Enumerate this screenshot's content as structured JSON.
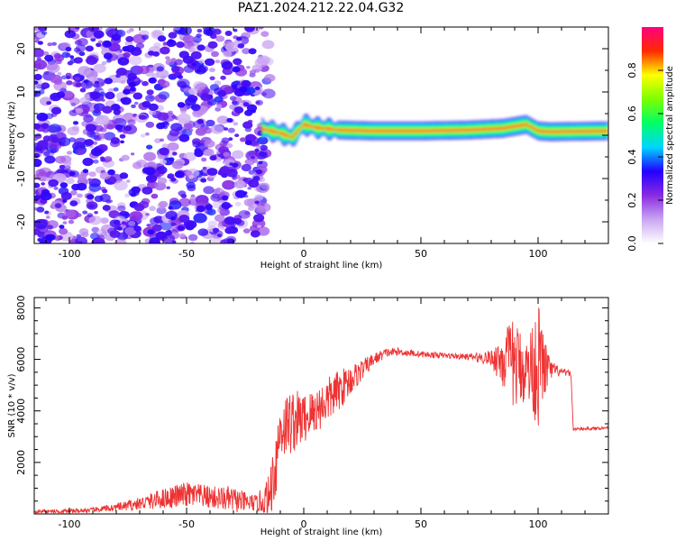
{
  "title": "PAZ1.2024.212.22.04.G32",
  "chart_data": [
    {
      "type": "heatmap",
      "xlabel": "Height of straight line (km)",
      "ylabel": "Frequency (Hz)",
      "xlim": [
        -115,
        130
      ],
      "ylim": [
        -25,
        25
      ],
      "x_ticks": [
        -100,
        -50,
        0,
        50,
        100
      ],
      "x_tick_labels": [
        "-100",
        "-50",
        "0",
        "50",
        "100"
      ],
      "y_ticks": [
        -20,
        -10,
        0,
        10,
        20
      ],
      "y_tick_labels": [
        "-20",
        "-10",
        "0",
        "10",
        "20"
      ],
      "colorbar": {
        "label": "Normalized spectral amplitude",
        "range": [
          0,
          1
        ],
        "ticks": [
          0.0,
          0.2,
          0.4,
          0.6,
          0.8
        ],
        "tick_labels": [
          "0.0",
          "0.2",
          "0.4",
          "0.6",
          "0.8"
        ],
        "colors": [
          "#ffffff",
          "#c9a6f2",
          "#8a2be2",
          "#2200ff",
          "#00d5ff",
          "#00ff66",
          "#7cff00",
          "#ffff00",
          "#ff2a00",
          "#ff0080"
        ]
      },
      "noise_region_x": [
        -115,
        -18
      ],
      "signal_center_freq_hz": [
        [
          -18,
          1.5
        ],
        [
          -10,
          0.5
        ],
        [
          -5,
          -0.5
        ],
        [
          0,
          2.5
        ],
        [
          5,
          1.8
        ],
        [
          10,
          1.5
        ],
        [
          15,
          1.2
        ],
        [
          30,
          1.0
        ],
        [
          50,
          1.0
        ],
        [
          70,
          1.2
        ],
        [
          85,
          1.6
        ],
        [
          95,
          2.5
        ],
        [
          100,
          1.0
        ],
        [
          105,
          0.8
        ],
        [
          130,
          1.0
        ]
      ]
    },
    {
      "type": "line",
      "xlabel": "Height of straight line (km)",
      "ylabel": "SNR (10 * v/v)",
      "xlim": [
        -115,
        130
      ],
      "ylim": [
        0,
        8400
      ],
      "x_ticks": [
        -100,
        -50,
        0,
        50,
        100
      ],
      "x_tick_labels": [
        "-100",
        "-50",
        "0",
        "50",
        "100"
      ],
      "y_ticks": [
        2000,
        4000,
        6000,
        8000
      ],
      "y_tick_labels": [
        "2000",
        "4000",
        "6000",
        "8000"
      ],
      "color": "#ee3333",
      "envelope": {
        "x": [
          -115,
          -100,
          -90,
          -80,
          -70,
          -60,
          -50,
          -40,
          -30,
          -25,
          -20,
          -15,
          -12,
          -10,
          -5,
          0,
          5,
          10,
          15,
          20,
          25,
          30,
          35,
          40,
          50,
          60,
          70,
          80,
          85,
          90,
          95,
          100,
          105,
          110,
          114,
          115,
          120,
          130
        ],
        "mean": [
          100,
          110,
          150,
          250,
          400,
          600,
          750,
          650,
          550,
          450,
          420,
          600,
          2000,
          3300,
          3600,
          3700,
          4000,
          4400,
          4800,
          5200,
          5600,
          6000,
          6250,
          6300,
          6200,
          6150,
          6100,
          6050,
          6000,
          5800,
          5600,
          5800,
          5600,
          5500,
          5450,
          3300,
          3300,
          3350
        ],
        "amp": [
          60,
          80,
          100,
          150,
          250,
          400,
          500,
          450,
          500,
          400,
          300,
          900,
          1500,
          1200,
          1300,
          1000,
          900,
          900,
          800,
          600,
          400,
          250,
          180,
          150,
          120,
          110,
          120,
          300,
          1200,
          1800,
          1200,
          2500,
          400,
          150,
          100,
          60,
          60,
          60
        ]
      }
    }
  ]
}
